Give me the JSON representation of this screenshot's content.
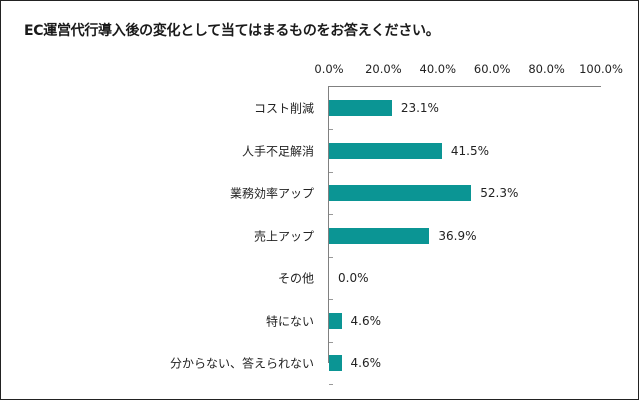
{
  "chart_data": {
    "type": "bar",
    "orientation": "horizontal",
    "title": "EC運営代行導入後の変化として当てはまるものをお答えください。",
    "categories": [
      "コスト削減",
      "人手不足解消",
      "業務効率アップ",
      "売上アップ",
      "その他",
      "特にない",
      "分からない、答えられない"
    ],
    "values": [
      23.1,
      41.5,
      52.3,
      36.9,
      0.0,
      4.6,
      4.6
    ],
    "value_labels": [
      "23.1%",
      "41.5%",
      "52.3%",
      "36.9%",
      "0.0%",
      "4.6%",
      "4.6%"
    ],
    "xlabel": "",
    "ylabel": "",
    "xlim": [
      0,
      100
    ],
    "x_ticks": [
      "0.0%",
      "20.0%",
      "40.0%",
      "60.0%",
      "80.0%",
      "100.0%"
    ],
    "axis_position": "top",
    "grid": false,
    "legend": null,
    "bar_color": "#0b9594"
  }
}
